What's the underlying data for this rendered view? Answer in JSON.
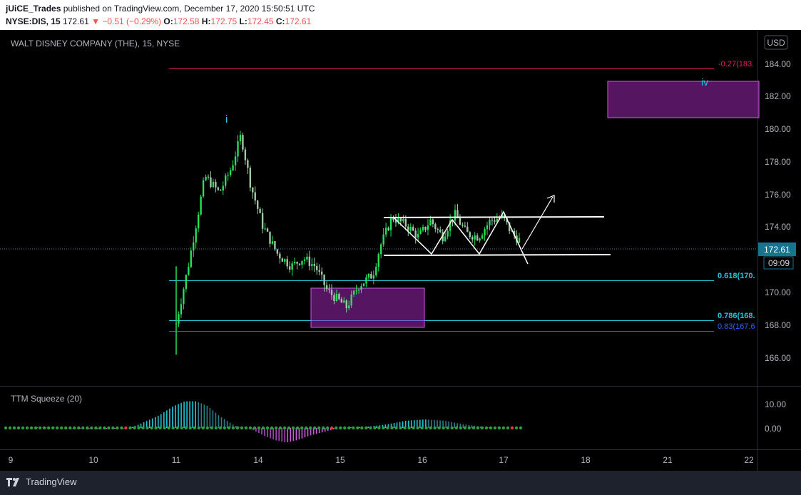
{
  "header": {
    "user": "jUiCE_Trades",
    "published": "published on TradingView.com, December 17, 2020 15:50:51 UTC",
    "symbol": "NYSE:DIS, 15",
    "last": "172.61",
    "change": "−0.51 (−0.29%)",
    "o_label": "O:",
    "o": "172.58",
    "h_label": "H:",
    "h": "172.75",
    "l_label": "L:",
    "l": "172.45",
    "c_label": "C:",
    "c": "172.61"
  },
  "footer": {
    "brand": "TradingView"
  },
  "chart_data": [
    {
      "type": "candlestick",
      "title": "WALT DISNEY COMPANY (THE), 15, NYSE",
      "currency": "USD",
      "x_ticks": [
        "9",
        "10",
        "11",
        "14",
        "15",
        "16",
        "17",
        "18",
        "21",
        "22"
      ],
      "y_ticks": [
        "184.00",
        "182.00",
        "180.00",
        "178.00",
        "176.00",
        "174.00",
        "172.00",
        "170.00",
        "168.00",
        "166.00"
      ],
      "ylim": [
        165.0,
        185.5
      ],
      "last_price": "172.61",
      "countdown": "09:09",
      "close_path": [
        [
          0,
          167.5
        ],
        [
          0.5,
          171.0
        ],
        [
          1.2,
          176.5
        ],
        [
          1.8,
          175.5
        ],
        [
          2.3,
          177.0
        ],
        [
          2.7,
          179.0
        ],
        [
          3.1,
          176.0
        ],
        [
          3.6,
          173.5
        ],
        [
          4.2,
          171.8
        ],
        [
          4.8,
          171.0
        ],
        [
          5.3,
          171.5
        ],
        [
          5.8,
          171.0
        ],
        [
          6.3,
          169.5
        ],
        [
          6.7,
          169.0
        ],
        [
          7.1,
          168.5
        ],
        [
          7.6,
          169.8
        ],
        [
          8.2,
          170.5
        ],
        [
          8.5,
          172.2
        ],
        [
          9.0,
          174.0
        ],
        [
          9.6,
          173.5
        ],
        [
          10.1,
          172.8
        ],
        [
          10.6,
          173.8
        ],
        [
          11.1,
          172.8
        ],
        [
          11.6,
          174.2
        ],
        [
          12.1,
          173.0
        ],
        [
          12.6,
          172.8
        ],
        [
          13.1,
          173.8
        ],
        [
          13.6,
          174.0
        ],
        [
          14.0,
          173.0
        ],
        [
          14.3,
          172.61
        ]
      ],
      "wave_labels": [
        {
          "text": "i",
          "color": "#26c6da"
        },
        {
          "text": "iv",
          "color": "#26c6da"
        }
      ],
      "levels": [
        {
          "label": "-0.27(183.",
          "price": 183.65,
          "color": "#e91e63"
        },
        {
          "label": "0.618(170.",
          "price": 170.65,
          "color": "#26c6da"
        },
        {
          "label": "0.786(168.",
          "price": 168.25,
          "color": "#26c6da"
        },
        {
          "label": "0.83(167.6",
          "price": 167.6,
          "color": "#2962ff"
        }
      ],
      "zones": [
        {
          "name": "demand-zone",
          "top": 170.25,
          "bottom": 167.85,
          "color": "#9c27b0"
        },
        {
          "name": "target-zone",
          "top": 182.9,
          "bottom": 180.65,
          "color": "#9c27b0"
        }
      ],
      "pattern_lines": [
        {
          "name": "resistance-line",
          "p1": 174.5,
          "p2": 174.55
        },
        {
          "name": "support-line",
          "p1": 172.15,
          "p2": 172.1
        }
      ]
    },
    {
      "type": "bar",
      "title": "TTM Squeeze (20)",
      "y_ticks": [
        "10.00",
        "0.00"
      ],
      "ylim": [
        -5,
        14
      ],
      "hist_path": [
        [
          0,
          0
        ],
        [
          1.0,
          0
        ],
        [
          2.0,
          0.3
        ],
        [
          3.0,
          0
        ],
        [
          4.0,
          -0.4
        ],
        [
          5.0,
          -0.5
        ],
        [
          6.0,
          -0.3
        ],
        [
          6.5,
          0
        ],
        [
          7.0,
          1.5
        ],
        [
          8.0,
          5
        ],
        [
          8.8,
          9
        ],
        [
          9.4,
          11
        ],
        [
          10.0,
          11
        ],
        [
          10.6,
          9
        ],
        [
          11.2,
          5
        ],
        [
          12.0,
          1
        ],
        [
          12.6,
          0
        ],
        [
          13.0,
          -1
        ],
        [
          13.5,
          -3
        ],
        [
          14.1,
          -5
        ],
        [
          14.7,
          -6
        ],
        [
          15.3,
          -5
        ],
        [
          16.0,
          -3
        ],
        [
          17.0,
          -1
        ],
        [
          17.5,
          0
        ],
        [
          18.0,
          0.3
        ],
        [
          19.0,
          0.5
        ],
        [
          20.0,
          1.5
        ],
        [
          21.0,
          3
        ],
        [
          22.0,
          3.5
        ],
        [
          23.0,
          3
        ],
        [
          24.0,
          1.5
        ],
        [
          25.0,
          0.5
        ],
        [
          26.0,
          0
        ],
        [
          27.0,
          0
        ]
      ]
    }
  ]
}
